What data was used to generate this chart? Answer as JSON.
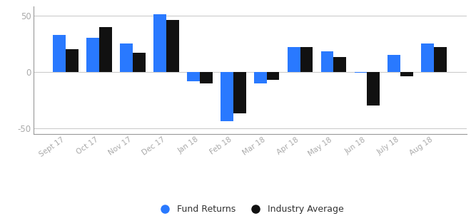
{
  "categories": [
    "Sept 17",
    "Oct 17",
    "Nov 17",
    "Dec 17",
    "Jan 18",
    "Feb 18",
    "Mar 18",
    "Apr 18",
    "May 18",
    "Jun 18",
    "July 18",
    "Aug 18"
  ],
  "fund_returns": [
    33,
    30,
    25,
    51,
    -8,
    -44,
    -10,
    22,
    18,
    -1,
    15,
    25
  ],
  "industry_average": [
    20,
    40,
    17,
    46,
    -10,
    -37,
    -7,
    22,
    13,
    -30,
    -4,
    22
  ],
  "fund_color": "#2979ff",
  "industry_color": "#111111",
  "ylim": [
    -55,
    58
  ],
  "yticks": [
    -50,
    0,
    50
  ],
  "ytick_labels": [
    "-50",
    "0",
    "50"
  ],
  "legend_fund": "Fund Returns",
  "legend_industry": "Industry Average",
  "background_color": "#ffffff",
  "grid_color": "#cccccc",
  "spine_color": "#999999",
  "tick_label_color": "#aaaaaa",
  "bar_width": 0.38
}
